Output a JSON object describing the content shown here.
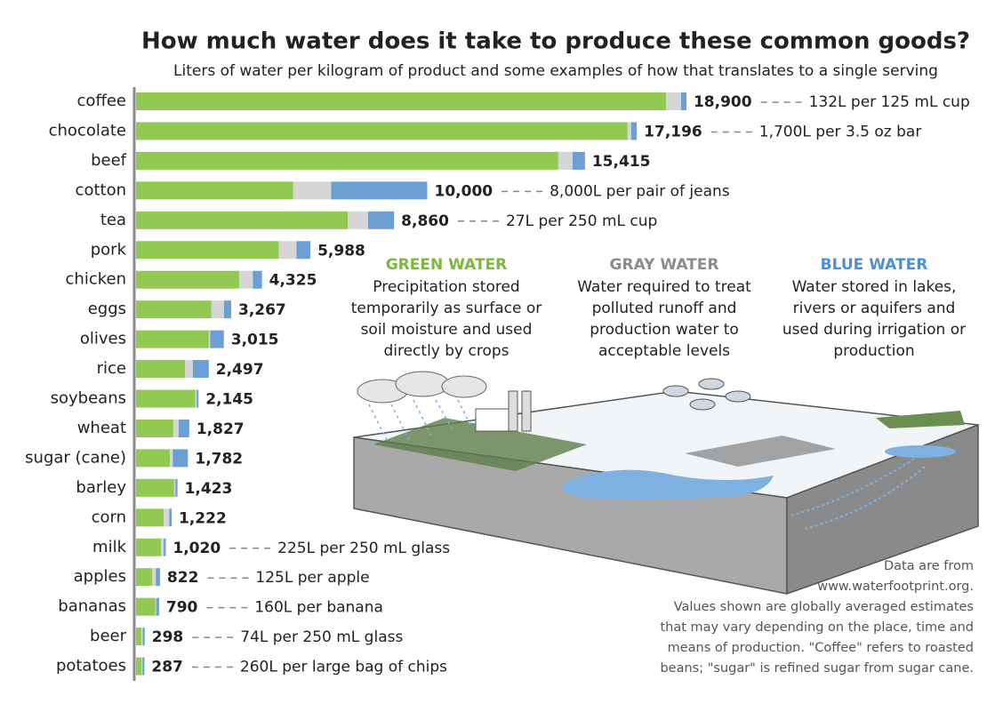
{
  "chart_data": {
    "type": "stacked-barh",
    "title": "How much water does it take to produce these common goods?",
    "subtitle": "Liters of water per kilogram of product and some examples of how that translates to a single serving",
    "categories": [
      "coffee",
      "chocolate",
      "beef",
      "cotton",
      "tea",
      "pork",
      "chicken",
      "eggs",
      "olives",
      "rice",
      "soybeans",
      "wheat",
      "sugar (cane)",
      "barley",
      "corn",
      "milk",
      "apples",
      "bananas",
      "beer",
      "potatoes"
    ],
    "xlim": [
      0,
      20000
    ],
    "series": [
      {
        "name": "GREEN WATER",
        "color": "#92c953",
        "title_color": "#7cb83e",
        "lines": [
          "Precipitation stored",
          "temporarily as surface or",
          "soil moisture and used",
          "directly by crops"
        ],
        "values": [
          18200,
          16880,
          14500,
          5400,
          7270,
          4900,
          3540,
          2590,
          2500,
          1680,
          2040,
          1280,
          1160,
          1310,
          950,
          860,
          560,
          660,
          180,
          190
        ]
      },
      {
        "name": "GRAY WATER",
        "color": "#d6d6d6",
        "title_color": "#8c8c8c",
        "lines": [
          "Water required to treat",
          "polluted runoff and",
          "production water to",
          "acceptable levels"
        ],
        "values": [
          520,
          120,
          490,
          1300,
          700,
          610,
          470,
          430,
          50,
          270,
          40,
          180,
          100,
          40,
          190,
          90,
          120,
          30,
          50,
          30
        ]
      },
      {
        "name": "BLUE WATER",
        "color": "#6c9fd4",
        "title_color": "#4f8fd0",
        "lines": [
          "Water stored in lakes,",
          "rivers or aquifers and",
          "used during irrigation or",
          "production"
        ],
        "values": [
          180,
          196,
          425,
          3300,
          890,
          478,
          315,
          247,
          465,
          547,
          65,
          367,
          522,
          73,
          82,
          70,
          142,
          100,
          68,
          67
        ]
      }
    ],
    "totals": [
      18900,
      17196,
      15415,
      10000,
      8860,
      5988,
      4325,
      3267,
      3015,
      2497,
      2145,
      1827,
      1782,
      1423,
      1222,
      1020,
      822,
      790,
      298,
      287
    ],
    "total_labels": [
      "18,900",
      "17,196",
      "15,415",
      "10,000",
      "8,860",
      "5,988",
      "4,325",
      "3,267",
      "3,015",
      "2,497",
      "2,145",
      "1,827",
      "1,782",
      "1,423",
      "1,222",
      "1,020",
      "822",
      "790",
      "298",
      "287"
    ],
    "annotations": [
      "132L per 125 mL cup",
      "1,700L per 3.5 oz bar",
      null,
      "8,000L per pair of jeans",
      "27L per 250 mL cup",
      null,
      null,
      null,
      null,
      null,
      null,
      null,
      null,
      null,
      null,
      "225L per 250 mL glass",
      "125L per apple",
      "160L per banana",
      "74L per 250 mL glass",
      "260L per large bag of chips"
    ],
    "notes": [
      "Data are from",
      "www.waterfootprint.org.",
      "Values shown are globally averaged estimates",
      "that may vary depending on the place, time and",
      "means of production. \"Coffee\" refers to roasted",
      "beans; \"sugar\" is refined sugar from sugar cane."
    ]
  }
}
